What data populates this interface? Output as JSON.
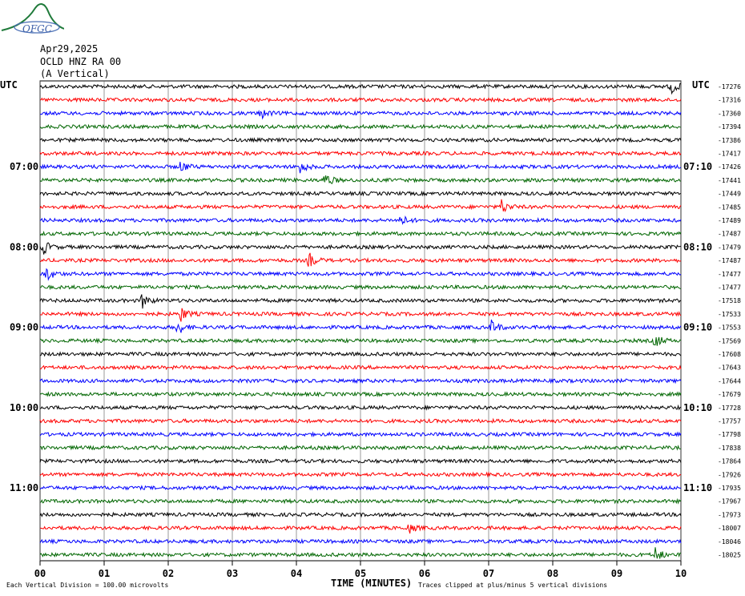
{
  "header": {
    "date": "Apr29,2025",
    "station": "OCLD HNZ RA 00",
    "component": "(A Vertical)",
    "logo_text": "OFGC"
  },
  "utc_label_left": "UTC",
  "utc_label_right": "UTC",
  "footer": {
    "scale": "Each Vertical Division =  100.00 microvolts",
    "clip": "Traces clipped at plus/minus 5 vertical divisions",
    "xaxis": "TIME (MINUTES)"
  },
  "chart_data": {
    "type": "line",
    "xlabel": "TIME (MINUTES)",
    "xlim": [
      0,
      10
    ],
    "x_ticks": [
      "00",
      "01",
      "02",
      "03",
      "04",
      "05",
      "06",
      "07",
      "08",
      "09",
      "10"
    ],
    "trace_colors": [
      "#000000",
      "#ff0000",
      "#0000ff",
      "#006600"
    ],
    "left_time_labels": [
      {
        "row": 6,
        "label": "07:00"
      },
      {
        "row": 12,
        "label": "08:00"
      },
      {
        "row": 18,
        "label": "09:00"
      },
      {
        "row": 24,
        "label": "10:00"
      },
      {
        "row": 30,
        "label": "11:00"
      }
    ],
    "right_time_labels": [
      {
        "row": 6,
        "label": "07:10"
      },
      {
        "row": 12,
        "label": "08:10"
      },
      {
        "row": 18,
        "label": "09:10"
      },
      {
        "row": 24,
        "label": "10:10"
      },
      {
        "row": 30,
        "label": "11:10"
      }
    ],
    "row_offsets": [
      "-17276",
      "-17316",
      "-17360",
      "-17394",
      "-17386",
      "-17417",
      "-17426",
      "-17441",
      "-17449",
      "-17485",
      "-17489",
      "-17487",
      "-17479",
      "-17487",
      "-17477",
      "-17477",
      "-17518",
      "-17533",
      "-17553",
      "-17569",
      "-17608",
      "-17643",
      "-17644",
      "-17679",
      "-17728",
      "-17757",
      "-17798",
      "-17838",
      "-17864",
      "-17926",
      "-17935",
      "-17967",
      "-17973",
      "-18007",
      "-18046",
      "-18025"
    ],
    "events": [
      {
        "row": 0,
        "minute": 9.85,
        "amp": 9
      },
      {
        "row": 2,
        "minute": 3.45,
        "amp": 6
      },
      {
        "row": 6,
        "minute": 2.2,
        "amp": 7
      },
      {
        "row": 6,
        "minute": 4.05,
        "amp": 9
      },
      {
        "row": 7,
        "minute": 4.45,
        "amp": 9
      },
      {
        "row": 9,
        "minute": 7.2,
        "amp": 9
      },
      {
        "row": 10,
        "minute": 5.6,
        "amp": 9
      },
      {
        "row": 12,
        "minute": 0.05,
        "amp": 9
      },
      {
        "row": 13,
        "minute": 4.2,
        "amp": 9
      },
      {
        "row": 14,
        "minute": 0.1,
        "amp": 9
      },
      {
        "row": 16,
        "minute": 1.6,
        "amp": 9
      },
      {
        "row": 17,
        "minute": 2.2,
        "amp": 9
      },
      {
        "row": 18,
        "minute": 2.15,
        "amp": 9
      },
      {
        "row": 18,
        "minute": 7.05,
        "amp": 9
      },
      {
        "row": 19,
        "minute": 9.6,
        "amp": 9
      },
      {
        "row": 33,
        "minute": 5.75,
        "amp": 6
      },
      {
        "row": 35,
        "minute": 9.6,
        "amp": 9
      }
    ]
  }
}
